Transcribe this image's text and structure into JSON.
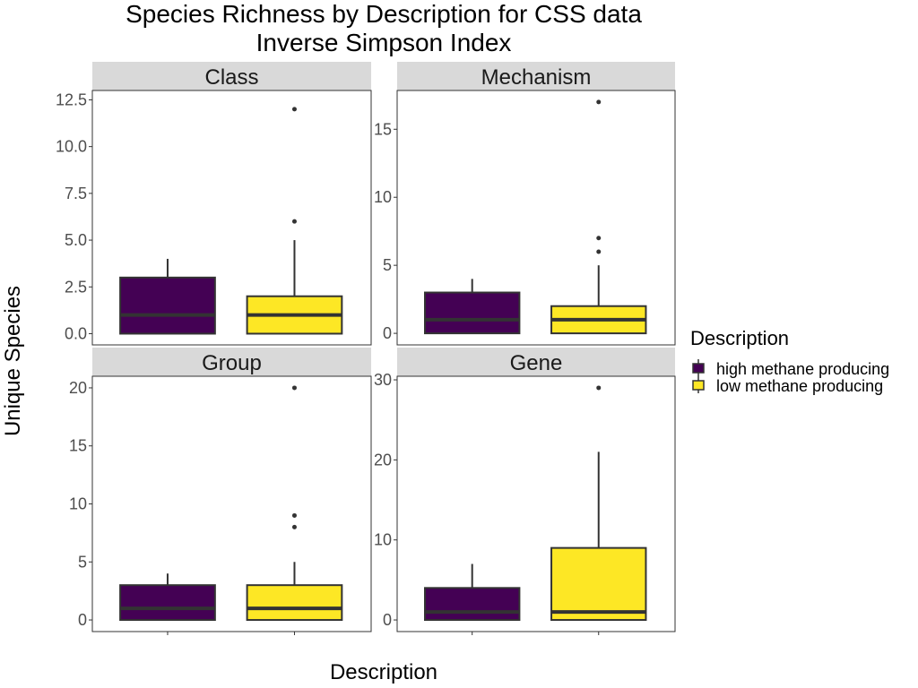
{
  "chart_data": {
    "type": "box",
    "title": [
      "Species Richness by Description for CSS data",
      "Inverse Simpson Index"
    ],
    "xlabel": "Description",
    "ylabel": "Unique Species",
    "legend": {
      "title": "Description",
      "position": "right",
      "entries": [
        {
          "name": "high methane producing",
          "color": "#440154"
        },
        {
          "name": "low methane producing",
          "color": "#FDE725"
        }
      ]
    },
    "x_tick_labels_shown": false,
    "grid": false,
    "panels": [
      {
        "label": "Class",
        "ylim": [
          -0.6,
          13
        ],
        "yticks": [
          0,
          2.5,
          5,
          7.5,
          10,
          12.5
        ],
        "ytick_labels": [
          "0.0",
          "2.5",
          "5.0",
          "7.5",
          "10.0",
          "12.5"
        ],
        "boxes": [
          {
            "group": "high methane producing",
            "min": 0,
            "q1": 0,
            "median": 1,
            "q3": 3,
            "max": 4,
            "outliers": []
          },
          {
            "group": "low methane producing",
            "min": 0,
            "q1": 0,
            "median": 1,
            "q3": 2,
            "max": 5,
            "outliers": [
              6,
              12
            ]
          }
        ]
      },
      {
        "label": "Mechanism",
        "ylim": [
          -0.85,
          17.85
        ],
        "yticks": [
          0,
          5,
          10,
          15
        ],
        "ytick_labels": [
          "0",
          "5",
          "10",
          "15"
        ],
        "boxes": [
          {
            "group": "high methane producing",
            "min": 0,
            "q1": 0,
            "median": 1,
            "q3": 3,
            "max": 4,
            "outliers": []
          },
          {
            "group": "low methane producing",
            "min": 0,
            "q1": 0,
            "median": 1,
            "q3": 2,
            "max": 5,
            "outliers": [
              6,
              7,
              17
            ]
          }
        ]
      },
      {
        "label": "Group",
        "ylim": [
          -1,
          21
        ],
        "yticks": [
          0,
          5,
          10,
          15,
          20
        ],
        "ytick_labels": [
          "0",
          "5",
          "10",
          "15",
          "20"
        ],
        "boxes": [
          {
            "group": "high methane producing",
            "min": 0,
            "q1": 0,
            "median": 1,
            "q3": 3,
            "max": 4,
            "outliers": []
          },
          {
            "group": "low methane producing",
            "min": 0,
            "q1": 0,
            "median": 1,
            "q3": 3,
            "max": 5,
            "outliers": [
              8,
              9,
              20
            ]
          }
        ]
      },
      {
        "label": "Gene",
        "ylim": [
          -1.45,
          30.45
        ],
        "yticks": [
          0,
          10,
          20,
          30
        ],
        "ytick_labels": [
          "0",
          "10",
          "20",
          "30"
        ],
        "boxes": [
          {
            "group": "high methane producing",
            "min": 0,
            "q1": 0,
            "median": 1,
            "q3": 4,
            "max": 7,
            "outliers": []
          },
          {
            "group": "low methane producing",
            "min": 0,
            "q1": 0,
            "median": 1,
            "q3": 9,
            "max": 21,
            "outliers": [
              29
            ]
          }
        ]
      }
    ]
  }
}
